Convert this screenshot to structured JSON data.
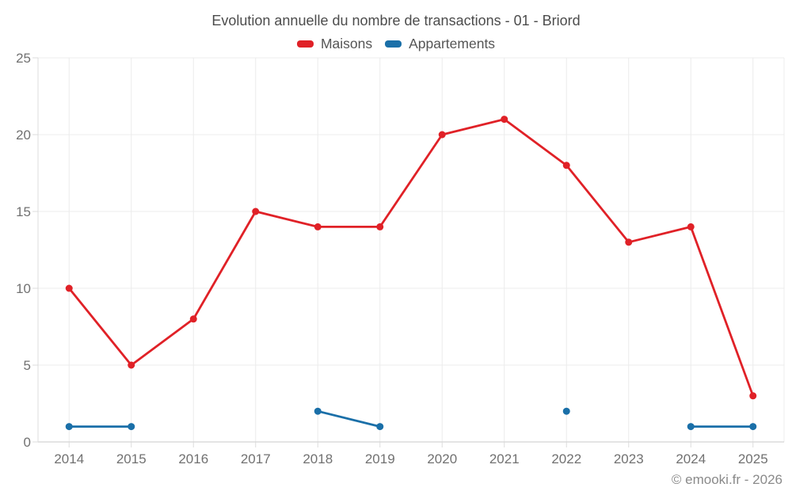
{
  "title": "Evolution annuelle du nombre de transactions - 01 - Briord",
  "footer": "© emooki.fr - 2026",
  "chart_data": {
    "type": "line",
    "title": "Evolution annuelle du nombre de transactions - 01 - Briord",
    "categories": [
      "2014",
      "2015",
      "2016",
      "2017",
      "2018",
      "2019",
      "2020",
      "2021",
      "2022",
      "2023",
      "2024",
      "2025"
    ],
    "series": [
      {
        "name": "Maisons",
        "color": "#e02127",
        "values": [
          10,
          5,
          8,
          15,
          14,
          14,
          20,
          21,
          18,
          13,
          14,
          3
        ]
      },
      {
        "name": "Appartements",
        "color": "#1a6fa8",
        "values": [
          1,
          1,
          null,
          null,
          2,
          1,
          null,
          null,
          2,
          null,
          1,
          1
        ]
      }
    ],
    "xlabel": "",
    "ylabel": "",
    "ylim": [
      0,
      25
    ],
    "yticks": [
      0,
      5,
      10,
      15,
      20,
      25
    ],
    "grid": true,
    "legend_position": "top"
  },
  "style": {
    "grid_color": "#ececec",
    "axis_color": "#c9c9c9",
    "tick_color": "#dcdcdc",
    "label_color": "#717171",
    "title_color": "#4c4c4c",
    "legend_text_color": "#555555",
    "footer_color": "#8a8a8a"
  }
}
